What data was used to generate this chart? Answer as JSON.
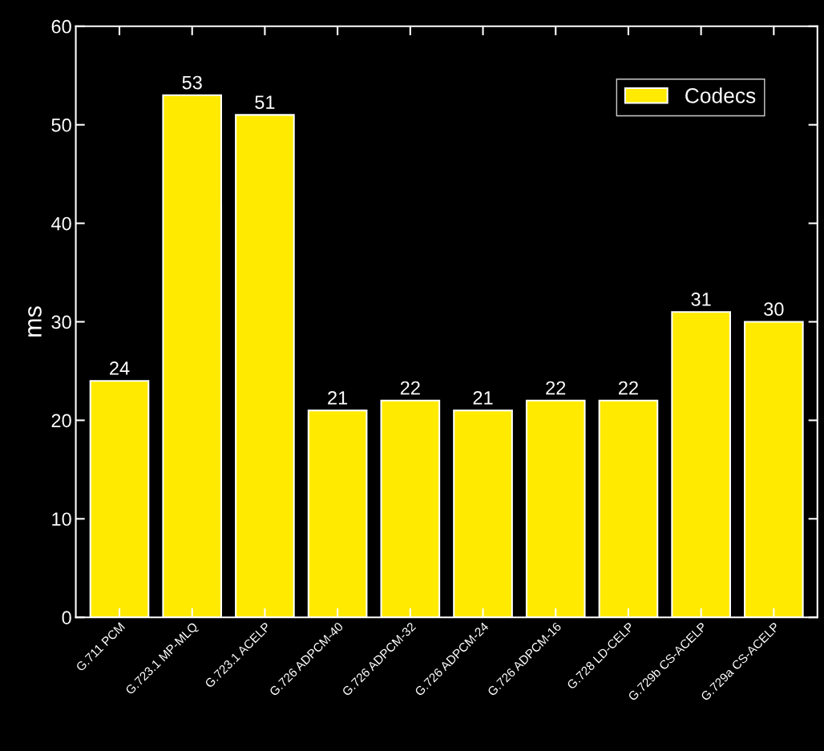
{
  "chart_data": {
    "type": "bar",
    "ylabel": "ms",
    "categories": [
      "G.711 PCM",
      "G.723.1 MP-MLQ",
      "G.723.1 ACELP",
      "G.726 ADPCM-40",
      "G.726 ADPCM-32",
      "G.726 ADPCM-24",
      "G.726 ADPCM-16",
      "G.728 LD-CELP",
      "G.729b CS-ACELP",
      "G.729a CS-ACELP"
    ],
    "series": [
      {
        "name": "Codecs",
        "color": "#ffea00",
        "values": [
          24,
          53,
          51,
          21,
          22,
          21,
          22,
          22,
          31,
          30
        ]
      }
    ],
    "ylim": [
      0,
      60
    ],
    "yticks": [
      0,
      10,
      20,
      30,
      40,
      50,
      60
    ],
    "data_labels": true,
    "legend": "top right",
    "grid": false
  }
}
